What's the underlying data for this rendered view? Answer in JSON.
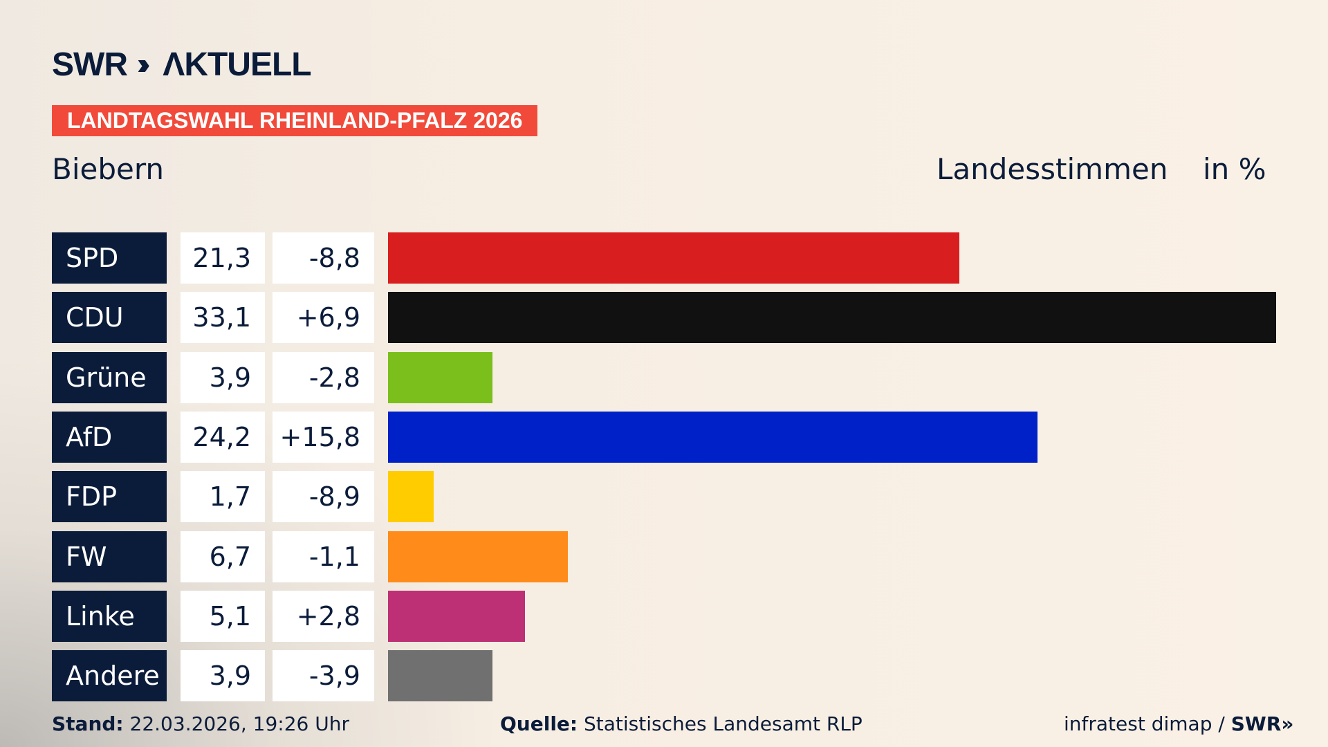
{
  "brand": {
    "logo": "SWR AKTUELL"
  },
  "banner": "LANDTAGSWAHL RHEINLAND-PFALZ 2026",
  "region": "Biebern",
  "header": {
    "vote_type": "Landesstimmen",
    "unit": "in %"
  },
  "chart_data": {
    "type": "bar",
    "orientation": "horizontal",
    "categories": [
      "SPD",
      "CDU",
      "Grüne",
      "AfD",
      "FDP",
      "FW",
      "Linke",
      "Andere"
    ],
    "values": [
      21.3,
      33.1,
      3.9,
      24.2,
      1.7,
      6.7,
      5.1,
      3.9
    ],
    "values_text": [
      "21,3",
      "33,1",
      "3,9",
      "24,2",
      "1,7",
      "6,7",
      "5,1",
      "3,9"
    ],
    "diff_text": [
      "-8,8",
      "+6,9",
      "-2,8",
      "+15,8",
      "-8,9",
      "-1,1",
      "+2,8",
      "-3,9"
    ],
    "colors": [
      "#d81e1e",
      "#111111",
      "#7abf1c",
      "#0021c8",
      "#ffcc00",
      "#ff8c1a",
      "#be3075",
      "#707070"
    ],
    "xlim": [
      0,
      33.1
    ]
  },
  "footer": {
    "stand_label": "Stand:",
    "stand_value": "22.03.2026, 19:26 Uhr",
    "source_label": "Quelle:",
    "source_value": "Statistisches Landesamt RLP",
    "credit": "infratest dimap /",
    "credit_logo": "SWR"
  }
}
